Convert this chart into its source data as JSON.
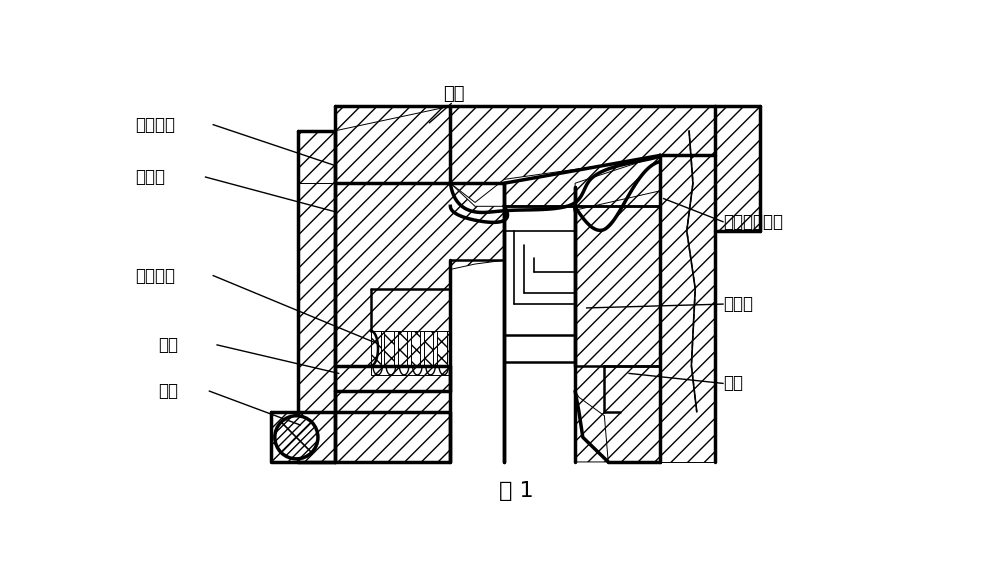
{
  "title": "图 1",
  "bg_color": "#ffffff",
  "labels": {
    "pump_body": "泵体",
    "fixed_guide_vane": "固定导叶",
    "aux_impeller": "副叶轮",
    "parking_seal": "停车密封",
    "shaft_sleeve": "轴套",
    "pump_shaft": "泵轴",
    "dynamic_seal": "动力密封总成",
    "aux_vane": "副叶片",
    "impeller": "叶轮"
  }
}
